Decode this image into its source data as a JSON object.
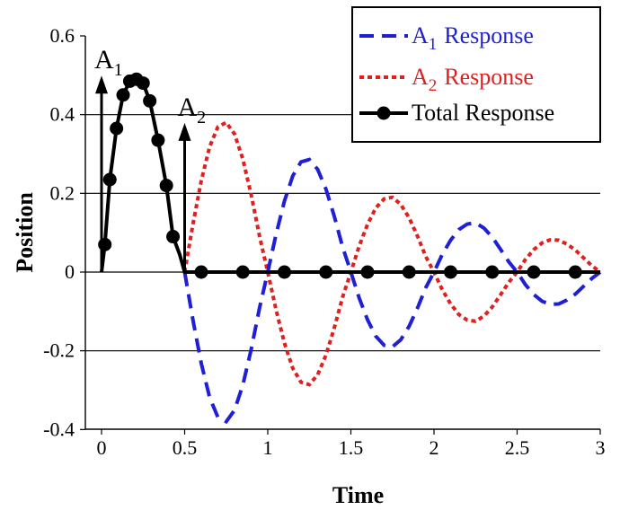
{
  "chart_data": {
    "type": "line",
    "title": "",
    "xlabel": "Time",
    "ylabel": "Position",
    "xlim": [
      -0.05,
      3.0
    ],
    "ylim": [
      -0.42,
      0.6
    ],
    "x_ticks": [
      0,
      0.5,
      1,
      1.5,
      2,
      2.5,
      3
    ],
    "x_tick_labels": [
      "0",
      "0.5",
      "1",
      "1.5",
      "2",
      "2.5",
      "3"
    ],
    "y_ticks": [
      0.6,
      0.4,
      0.2,
      0,
      -0.2,
      -0.4
    ],
    "y_tick_labels": [
      "0.6",
      "0.4",
      "0.2",
      "0",
      "-0.2",
      "-0.4"
    ],
    "gridlines_y": [
      0.4,
      0.2,
      0,
      -0.2
    ],
    "legend_position": "top-right",
    "colors": {
      "a1": "#1f1fd6",
      "a2": "#e01f1f",
      "total": "#000000"
    },
    "series": [
      {
        "name": "A1 Response",
        "label_base": "A",
        "label_sub": "1",
        "label_rest": "Response",
        "style": "dashed",
        "x": [
          0.5,
          0.55,
          0.6,
          0.65,
          0.7,
          0.75,
          0.8,
          0.85,
          0.9,
          0.95,
          1.0,
          1.05,
          1.1,
          1.15,
          1.2,
          1.25,
          1.3,
          1.35,
          1.4,
          1.45,
          1.5,
          1.55,
          1.6,
          1.65,
          1.7,
          1.75,
          1.8,
          1.85,
          1.9,
          1.95,
          2.0,
          2.05,
          2.1,
          2.15,
          2.2,
          2.25,
          2.3,
          2.35,
          2.4,
          2.45,
          2.5,
          2.55,
          2.6,
          2.65,
          2.7,
          2.75,
          2.8,
          2.85,
          2.9,
          2.95,
          3.0
        ],
        "values": [
          0.0,
          -0.122,
          -0.232,
          -0.318,
          -0.369,
          -0.38,
          -0.351,
          -0.287,
          -0.197,
          -0.092,
          0.0,
          0.096,
          0.18,
          0.244,
          0.28,
          0.286,
          0.261,
          0.211,
          0.142,
          0.064,
          0.0,
          -0.066,
          -0.121,
          -0.163,
          -0.186,
          -0.19,
          -0.172,
          -0.138,
          -0.092,
          -0.04,
          0.0,
          0.045,
          0.081,
          0.108,
          0.122,
          0.125,
          0.112,
          0.089,
          0.058,
          0.026,
          0.0,
          -0.032,
          -0.057,
          -0.074,
          -0.082,
          -0.081,
          -0.071,
          -0.056,
          -0.036,
          -0.016,
          0.0
        ]
      },
      {
        "name": "A2 Response",
        "label_base": "A",
        "label_sub": "2",
        "label_rest": "Response",
        "style": "dotted",
        "x": [
          0.5,
          0.55,
          0.6,
          0.65,
          0.7,
          0.75,
          0.8,
          0.85,
          0.9,
          0.95,
          1.0,
          1.05,
          1.1,
          1.15,
          1.2,
          1.25,
          1.3,
          1.35,
          1.4,
          1.45,
          1.5,
          1.55,
          1.6,
          1.65,
          1.7,
          1.75,
          1.8,
          1.85,
          1.9,
          1.95,
          2.0,
          2.05,
          2.1,
          2.15,
          2.2,
          2.25,
          2.3,
          2.35,
          2.4,
          2.45,
          2.5,
          2.55,
          2.6,
          2.65,
          2.7,
          2.75,
          2.8,
          2.85,
          2.9,
          2.95,
          3.0
        ],
        "values": [
          0.0,
          0.122,
          0.232,
          0.318,
          0.369,
          0.38,
          0.351,
          0.287,
          0.197,
          0.092,
          0.0,
          -0.096,
          -0.18,
          -0.244,
          -0.28,
          -0.286,
          -0.261,
          -0.211,
          -0.142,
          -0.064,
          0.0,
          0.066,
          0.121,
          0.163,
          0.186,
          0.19,
          0.172,
          0.138,
          0.092,
          0.04,
          0.0,
          -0.045,
          -0.081,
          -0.108,
          -0.122,
          -0.125,
          -0.112,
          -0.089,
          -0.058,
          -0.026,
          0.0,
          0.032,
          0.057,
          0.074,
          0.082,
          0.081,
          0.071,
          0.056,
          0.036,
          0.016,
          0.0
        ]
      },
      {
        "name": "Total Response",
        "label_rest": "Total Response",
        "style": "solid-markers",
        "x": [
          0.0,
          0.02,
          0.05,
          0.09,
          0.13,
          0.17,
          0.21,
          0.25,
          0.29,
          0.34,
          0.39,
          0.43,
          0.47,
          0.5,
          0.6,
          0.85,
          1.1,
          1.35,
          1.6,
          1.85,
          2.1,
          2.35,
          2.6,
          2.85,
          3.0
        ],
        "values": [
          0.0,
          0.07,
          0.235,
          0.365,
          0.45,
          0.485,
          0.49,
          0.48,
          0.435,
          0.335,
          0.22,
          0.09,
          0.045,
          0.0,
          0.0,
          0.0,
          0.0,
          0.0,
          0.0,
          0.0,
          0.0,
          0.0,
          0.0,
          0.0,
          0.0
        ],
        "marker_x": [
          0.02,
          0.05,
          0.09,
          0.13,
          0.17,
          0.21,
          0.25,
          0.29,
          0.34,
          0.39,
          0.43,
          0.6,
          0.85,
          1.1,
          1.35,
          1.6,
          1.85,
          2.1,
          2.35,
          2.6,
          2.85
        ],
        "marker_values": [
          0.07,
          0.235,
          0.365,
          0.45,
          0.485,
          0.49,
          0.48,
          0.435,
          0.335,
          0.22,
          0.09,
          0.0,
          0.0,
          0.0,
          0.0,
          0.0,
          0.0,
          0.0,
          0.0,
          0.0,
          0.0
        ]
      }
    ],
    "annotations": [
      {
        "name": "A1",
        "base": "A",
        "sub": "1",
        "x": 0.0,
        "y": 0.49
      },
      {
        "name": "A2",
        "base": "A",
        "sub": "2",
        "x": 0.5,
        "y": 0.37
      }
    ]
  }
}
